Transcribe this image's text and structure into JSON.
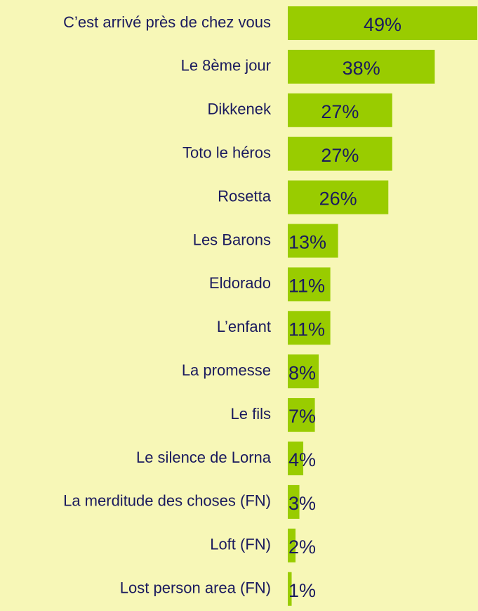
{
  "chart_data": {
    "type": "barh",
    "categories": [
      "C’est arrivé près de chez vous",
      "Le 8ème jour",
      "Dikkenek",
      "Toto le héros",
      "Rosetta",
      "Les Barons",
      "Eldorado",
      "L’enfant",
      "La promesse",
      "Le fils",
      "Le silence de Lorna",
      "La merditude des choses (FN)",
      "Loft (FN)",
      "Lost person area (FN)"
    ],
    "values": [
      49,
      38,
      27,
      27,
      26,
      13,
      11,
      11,
      8,
      7,
      4,
      3,
      2,
      1
    ],
    "value_labels": [
      "49%",
      "38%",
      "27%",
      "27%",
      "26%",
      "13%",
      "11%",
      "11%",
      "8%",
      "7%",
      "4%",
      "3%",
      "2%",
      "1%"
    ],
    "color": "#99cc00"
  }
}
